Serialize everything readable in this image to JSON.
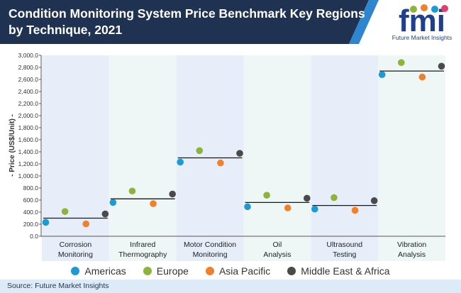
{
  "header": {
    "title": "Condition Monitoring System Price Benchmark Key Regions by Technique, 2021",
    "bg_color": "#1f3251",
    "accent_color": "#2e86d1"
  },
  "logo": {
    "text": "fmi",
    "tagline": "Future Market Insights",
    "color": "#1f3f8f"
  },
  "footer": {
    "source": "Source: Future Market Insights"
  },
  "chart_data": {
    "type": "scatter",
    "title": "Condition Monitoring System Price Benchmark Key Regions by Technique, 2021",
    "ylabel": "- Price (US$/Unit) -",
    "xlabel": "",
    "ylim": [
      0,
      3000
    ],
    "yticks": [
      "0.0",
      "200.0",
      "400.0",
      "600.0",
      "800.0",
      "1,000.0",
      "1,200.0",
      "1,400.0",
      "1,600.0",
      "1,800.0",
      "2,000.0",
      "2,200.0",
      "2,400.0",
      "2,600.0",
      "2,800.0",
      "3,000.0"
    ],
    "categories": [
      [
        "Corrosion",
        "Monitoring"
      ],
      [
        "Infrared",
        "Thermography"
      ],
      [
        "Motor Condition",
        "Monitoring"
      ],
      [
        "Oil",
        "Analysis"
      ],
      [
        "Ultrasound",
        "Testing"
      ],
      [
        "Vibration",
        "Analysis"
      ]
    ],
    "band_colors": [
      "#e7eef9",
      "#eef7f6"
    ],
    "averages": [
      300,
      620,
      1300,
      560,
      510,
      2740
    ],
    "series": [
      {
        "name": "Americas",
        "color": "#1b9ad6",
        "values": [
          230,
          560,
          1230,
          490,
          450,
          2680
        ]
      },
      {
        "name": "Europe",
        "color": "#8db33a",
        "values": [
          410,
          750,
          1420,
          680,
          640,
          2880
        ]
      },
      {
        "name": "Asia Pacific",
        "color": "#f0812a",
        "values": [
          205,
          540,
          1215,
          470,
          430,
          2640
        ]
      },
      {
        "name": "Middle East & Africa",
        "color": "#4a4a4a",
        "values": [
          370,
          700,
          1375,
          630,
          590,
          2820
        ]
      }
    ],
    "legend": "bottom"
  }
}
